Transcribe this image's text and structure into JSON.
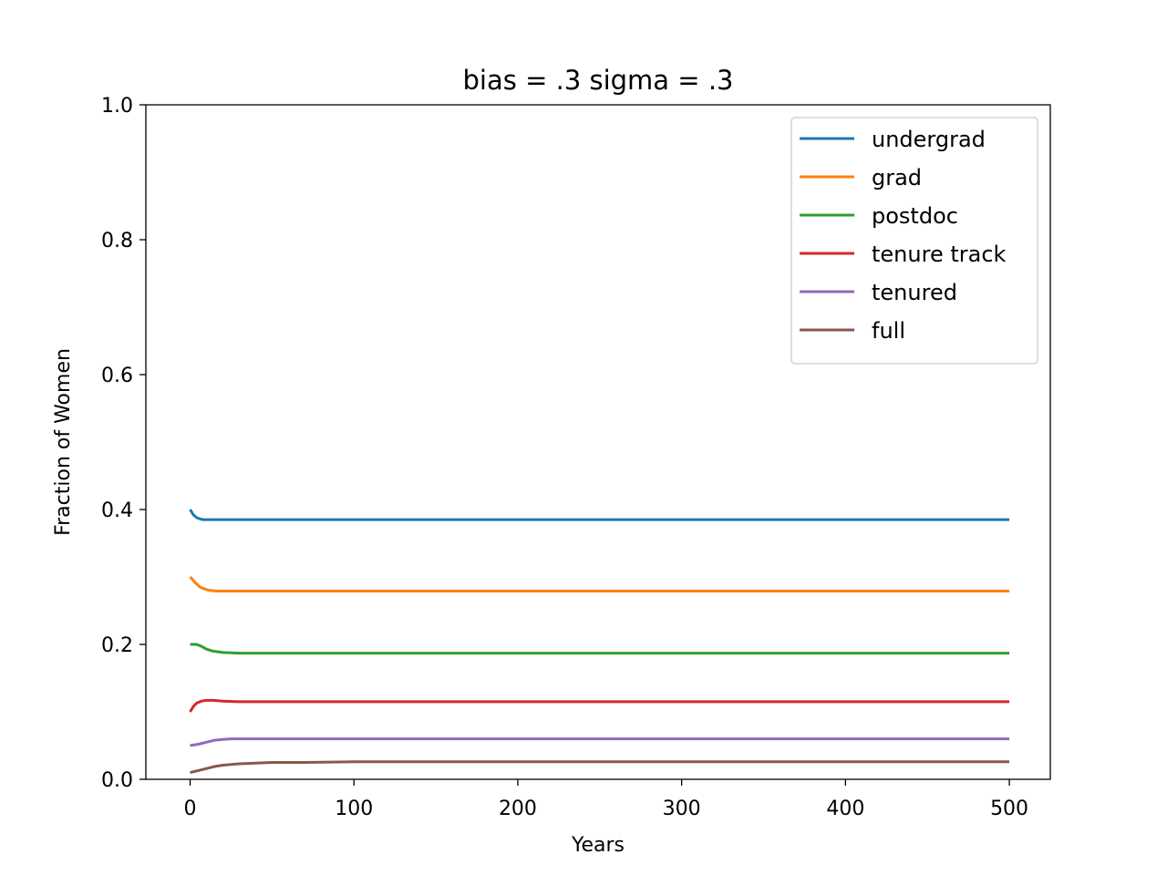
{
  "chart_data": {
    "type": "line",
    "title": "bias = .3      sigma = .3",
    "xlabel": "Years",
    "ylabel": "Fraction of Women",
    "xlim": [
      -27,
      525
    ],
    "ylim": [
      0,
      1
    ],
    "xticks": [
      0,
      100,
      200,
      300,
      400,
      500
    ],
    "yticks": [
      0.0,
      0.2,
      0.4,
      0.6,
      0.8,
      1.0
    ],
    "xtick_labels": [
      "0",
      "100",
      "200",
      "300",
      "400",
      "500"
    ],
    "ytick_labels": [
      "0.0",
      "0.2",
      "0.4",
      "0.6",
      "0.8",
      "1.0"
    ],
    "grid": false,
    "legend_position": "top-right",
    "series": [
      {
        "name": "undergrad",
        "color": "#1f77b4",
        "x": [
          0,
          2,
          4,
          6,
          8,
          12,
          20,
          40,
          100,
          500
        ],
        "y": [
          0.4,
          0.392,
          0.388,
          0.386,
          0.385,
          0.385,
          0.385,
          0.385,
          0.385,
          0.385
        ]
      },
      {
        "name": "grad",
        "color": "#ff7f0e",
        "x": [
          0,
          3,
          6,
          9,
          12,
          16,
          25,
          50,
          100,
          500
        ],
        "y": [
          0.3,
          0.292,
          0.285,
          0.282,
          0.28,
          0.279,
          0.279,
          0.279,
          0.279,
          0.279
        ]
      },
      {
        "name": "postdoc",
        "color": "#2ca02c",
        "x": [
          0,
          2,
          4,
          7,
          10,
          14,
          20,
          30,
          50,
          100,
          500
        ],
        "y": [
          0.2,
          0.2,
          0.2,
          0.197,
          0.193,
          0.19,
          0.188,
          0.187,
          0.187,
          0.187,
          0.187
        ]
      },
      {
        "name": "tenure track",
        "color": "#d62728",
        "x": [
          0,
          2,
          4,
          7,
          10,
          14,
          20,
          30,
          50,
          100,
          500
        ],
        "y": [
          0.1,
          0.108,
          0.113,
          0.116,
          0.117,
          0.117,
          0.116,
          0.115,
          0.115,
          0.115,
          0.115
        ]
      },
      {
        "name": "tenured",
        "color": "#9467bd",
        "x": [
          0,
          5,
          10,
          15,
          20,
          25,
          35,
          50,
          100,
          500
        ],
        "y": [
          0.05,
          0.052,
          0.055,
          0.058,
          0.059,
          0.06,
          0.06,
          0.06,
          0.06,
          0.06
        ]
      },
      {
        "name": "full",
        "color": "#8c564b",
        "x": [
          0,
          5,
          10,
          15,
          20,
          25,
          30,
          40,
          50,
          70,
          100,
          500
        ],
        "y": [
          0.01,
          0.013,
          0.016,
          0.019,
          0.021,
          0.022,
          0.023,
          0.024,
          0.025,
          0.025,
          0.026,
          0.026
        ]
      }
    ]
  }
}
